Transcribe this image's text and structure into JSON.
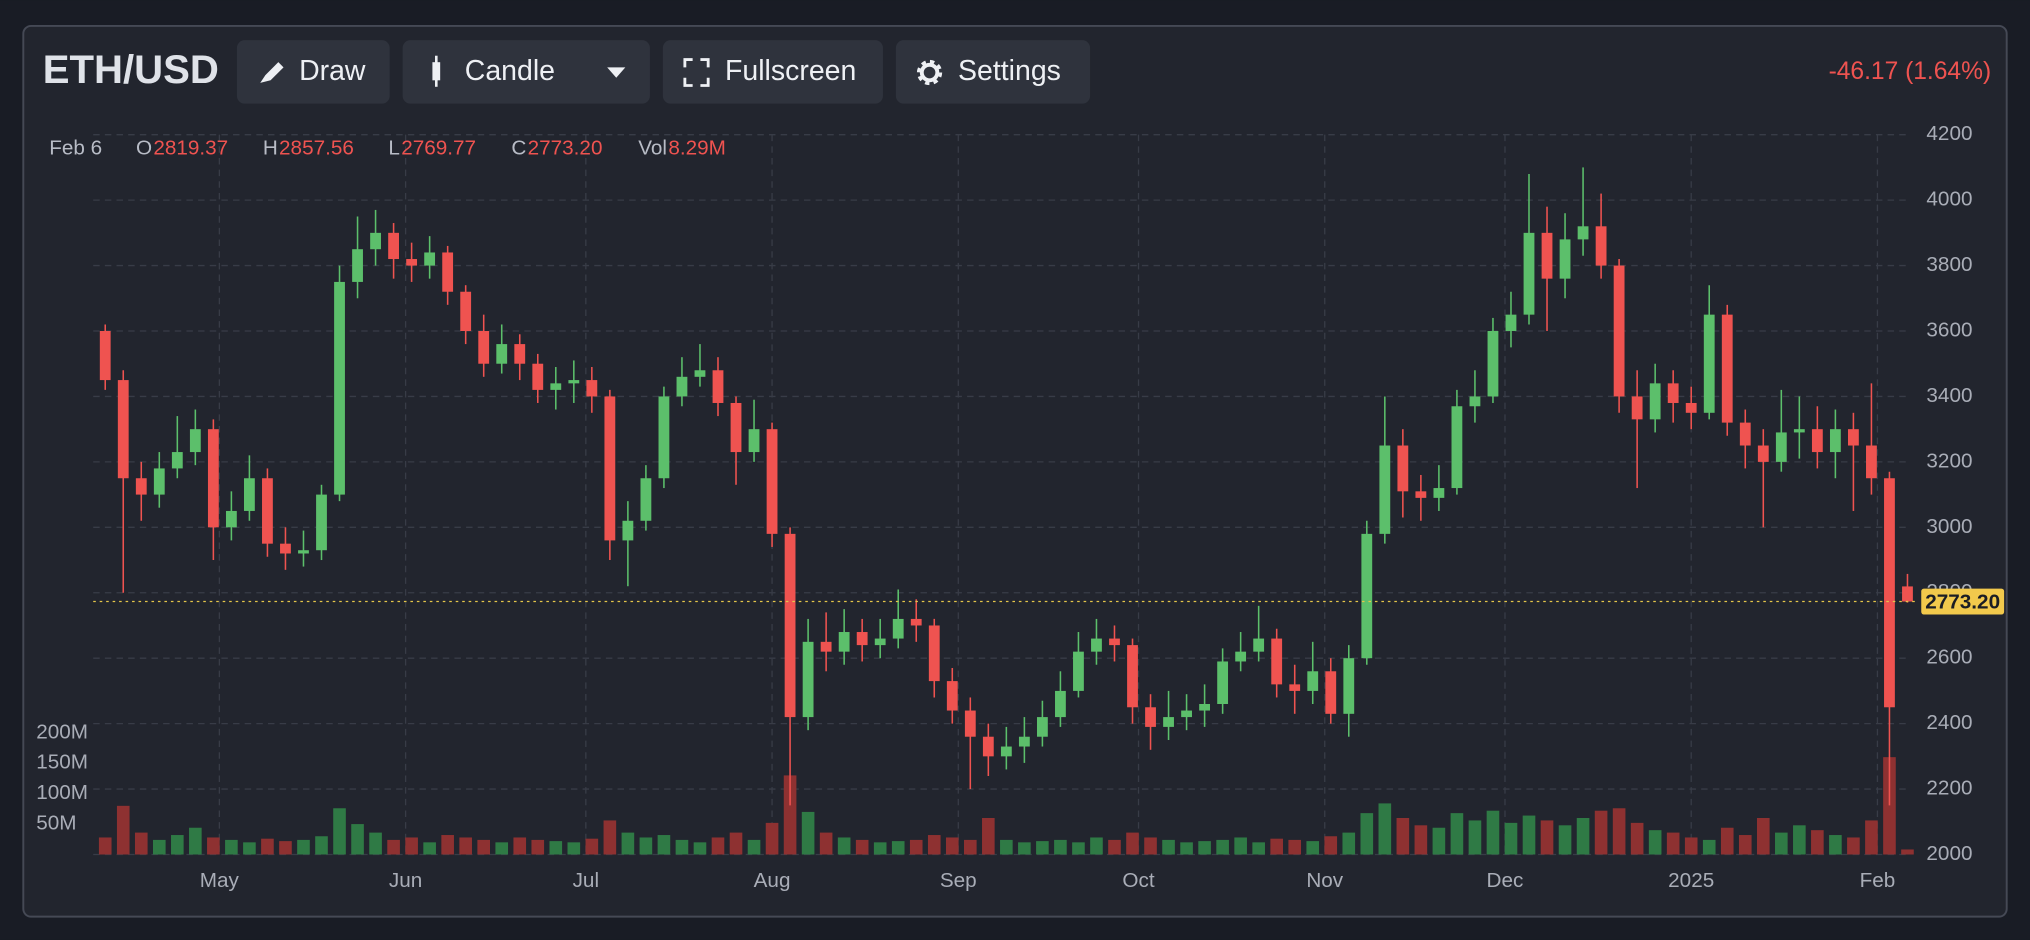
{
  "header": {
    "symbol": "ETH/USD",
    "buttons": [
      "Draw",
      "Candle",
      "Fullscreen",
      "Settings"
    ],
    "change": "-46.17 (1.64%)"
  },
  "chart_data": {
    "type": "candlestick",
    "x": [
      -19,
      -16,
      -13,
      -10,
      -7,
      -4,
      -1,
      2,
      5,
      8,
      11,
      14,
      17,
      20,
      23,
      26,
      29,
      32,
      35,
      38,
      41,
      44,
      47,
      50,
      53,
      56,
      59,
      62,
      65,
      68,
      71,
      74,
      77,
      80,
      83,
      86,
      89,
      92,
      95,
      98,
      101,
      104,
      107,
      110,
      113,
      116,
      119,
      122,
      125,
      128,
      131,
      134,
      137,
      140,
      143,
      146,
      149,
      152,
      155,
      158,
      161,
      164,
      167,
      170,
      173,
      176,
      179,
      182,
      185,
      188,
      191,
      194,
      197,
      200,
      203,
      206,
      209,
      212,
      215,
      218,
      221,
      224,
      227,
      230,
      233,
      236,
      239,
      242,
      245,
      248,
      251,
      254,
      257,
      260,
      263,
      266,
      269,
      272,
      275,
      278,
      281
    ],
    "open": [
      3600,
      3450,
      3150,
      3100,
      3180,
      3230,
      3300,
      3000,
      3050,
      3150,
      2950,
      2920,
      2930,
      3100,
      3750,
      3850,
      3900,
      3820,
      3800,
      3840,
      3720,
      3600,
      3500,
      3560,
      3500,
      3420,
      3440,
      3450,
      3400,
      2960,
      3020,
      3150,
      3400,
      3460,
      3480,
      3380,
      3230,
      3300,
      2980,
      2420,
      2650,
      2620,
      2680,
      2640,
      2660,
      2720,
      2700,
      2530,
      2440,
      2360,
      2300,
      2330,
      2360,
      2420,
      2500,
      2620,
      2660,
      2640,
      2450,
      2390,
      2420,
      2440,
      2460,
      2590,
      2620,
      2660,
      2520,
      2500,
      2560,
      2430,
      2600,
      2980,
      3250,
      3110,
      3090,
      3120,
      3370,
      3400,
      3600,
      3650,
      3900,
      3760,
      3880,
      3920,
      3800,
      3400,
      3330,
      3440,
      3380,
      3350,
      3650,
      3320,
      3250,
      3200,
      3290,
      3300,
      3230,
      3300,
      3250,
      3150,
      2819.37
    ],
    "high": [
      3620,
      3480,
      3200,
      3230,
      3340,
      3360,
      3330,
      3110,
      3220,
      3180,
      3000,
      2990,
      3130,
      3800,
      3950,
      3970,
      3930,
      3870,
      3890,
      3860,
      3740,
      3650,
      3620,
      3590,
      3530,
      3490,
      3510,
      3490,
      3420,
      3080,
      3190,
      3430,
      3520,
      3560,
      3520,
      3400,
      3390,
      3320,
      3000,
      2720,
      2740,
      2750,
      2720,
      2720,
      2810,
      2780,
      2720,
      2570,
      2480,
      2400,
      2390,
      2420,
      2470,
      2560,
      2680,
      2720,
      2700,
      2660,
      2490,
      2500,
      2490,
      2520,
      2630,
      2680,
      2760,
      2690,
      2580,
      2650,
      2600,
      2640,
      3020,
      3400,
      3300,
      3160,
      3190,
      3420,
      3480,
      3640,
      3720,
      4080,
      3980,
      3960,
      4100,
      4020,
      3820,
      3480,
      3500,
      3480,
      3430,
      3740,
      3680,
      3360,
      3300,
      3420,
      3400,
      3370,
      3360,
      3350,
      3440,
      3170,
      2857.56
    ],
    "low": [
      3420,
      2800,
      3020,
      3060,
      3150,
      3190,
      2900,
      2960,
      3020,
      2910,
      2870,
      2880,
      2900,
      3080,
      3700,
      3800,
      3760,
      3750,
      3760,
      3680,
      3560,
      3460,
      3470,
      3450,
      3380,
      3360,
      3380,
      3350,
      2900,
      2820,
      2990,
      3120,
      3370,
      3430,
      3340,
      3130,
      3200,
      2940,
      2150,
      2380,
      2560,
      2580,
      2590,
      2600,
      2630,
      2650,
      2480,
      2400,
      2200,
      2240,
      2260,
      2280,
      2330,
      2390,
      2480,
      2580,
      2590,
      2400,
      2320,
      2350,
      2380,
      2390,
      2430,
      2560,
      2590,
      2480,
      2430,
      2460,
      2400,
      2360,
      2580,
      2950,
      3030,
      3020,
      3050,
      3100,
      3320,
      3380,
      3550,
      3620,
      3600,
      3700,
      3830,
      3760,
      3350,
      3120,
      3290,
      3320,
      3300,
      3330,
      3280,
      3180,
      3000,
      3170,
      3210,
      3180,
      3150,
      3050,
      3100,
      2150,
      2769.77
    ],
    "close": [
      3450,
      3150,
      3100,
      3180,
      3230,
      3300,
      3000,
      3050,
      3150,
      2950,
      2920,
      2930,
      3100,
      3750,
      3850,
      3900,
      3820,
      3800,
      3840,
      3720,
      3600,
      3500,
      3560,
      3500,
      3420,
      3440,
      3450,
      3400,
      2960,
      3020,
      3150,
      3400,
      3460,
      3480,
      3380,
      3230,
      3300,
      2980,
      2420,
      2650,
      2620,
      2680,
      2640,
      2660,
      2720,
      2700,
      2530,
      2440,
      2360,
      2300,
      2330,
      2360,
      2420,
      2500,
      2620,
      2660,
      2640,
      2450,
      2390,
      2420,
      2440,
      2460,
      2590,
      2620,
      2660,
      2520,
      2500,
      2560,
      2430,
      2600,
      2980,
      3250,
      3110,
      3090,
      3120,
      3370,
      3400,
      3600,
      3650,
      3900,
      3760,
      3880,
      3920,
      3800,
      3400,
      3330,
      3440,
      3380,
      3350,
      3650,
      3320,
      3250,
      3200,
      3290,
      3300,
      3230,
      3300,
      3250,
      3150,
      2450,
      2773.2
    ],
    "volume": [
      28,
      80,
      36,
      24,
      32,
      44,
      28,
      24,
      20,
      26,
      22,
      24,
      30,
      76,
      50,
      36,
      24,
      28,
      20,
      32,
      28,
      24,
      20,
      28,
      24,
      22,
      20,
      26,
      56,
      36,
      28,
      32,
      24,
      20,
      28,
      36,
      24,
      52,
      130,
      70,
      36,
      28,
      24,
      20,
      22,
      24,
      32,
      28,
      24,
      60,
      24,
      20,
      22,
      24,
      20,
      28,
      24,
      36,
      28,
      24,
      20,
      22,
      24,
      28,
      20,
      26,
      24,
      22,
      30,
      36,
      68,
      84,
      60,
      48,
      44,
      68,
      56,
      72,
      52,
      64,
      56,
      48,
      60,
      72,
      76,
      52,
      40,
      36,
      28,
      24,
      44,
      32,
      60,
      36,
      48,
      40,
      32,
      28,
      56,
      160,
      8.29
    ],
    "up_color": "#5cbf6b",
    "down_color": "#ef5350",
    "volume_up_color": "#2f7a45",
    "volume_down_color": "#8e3131",
    "xlim": [
      -21,
      282
    ],
    "xticks": [
      {
        "value": 0,
        "label": "May"
      },
      {
        "value": 31,
        "label": "Jun"
      },
      {
        "value": 61,
        "label": "Jul"
      },
      {
        "value": 92,
        "label": "Aug"
      },
      {
        "value": 123,
        "label": "Sep"
      },
      {
        "value": 153,
        "label": "Oct"
      },
      {
        "value": 184,
        "label": "Nov"
      },
      {
        "value": 214,
        "label": "Dec"
      },
      {
        "value": 245,
        "label": "2025"
      },
      {
        "value": 276,
        "label": "Feb"
      }
    ],
    "ylim": [
      2000,
      4200
    ],
    "yticks": [
      2000,
      2200,
      2400,
      2600,
      2800,
      3000,
      3200,
      3400,
      3600,
      3800,
      4000,
      4200
    ],
    "volume_ylim": [
      0,
      200
    ],
    "volume_ticks": [
      {
        "value": 50,
        "label": "50M"
      },
      {
        "value": 100,
        "label": "100M"
      },
      {
        "value": 150,
        "label": "150M"
      },
      {
        "value": 200,
        "label": "200M"
      }
    ],
    "grid": true,
    "legend": {
      "date": "Feb 6",
      "items": [
        {
          "key": "O",
          "value": "2819.37"
        },
        {
          "key": "H",
          "value": "2857.56"
        },
        {
          "key": "L",
          "value": "2769.77"
        },
        {
          "key": "C",
          "value": "2773.20"
        },
        {
          "key": "Vol",
          "value": "8.29M"
        }
      ]
    }
  }
}
